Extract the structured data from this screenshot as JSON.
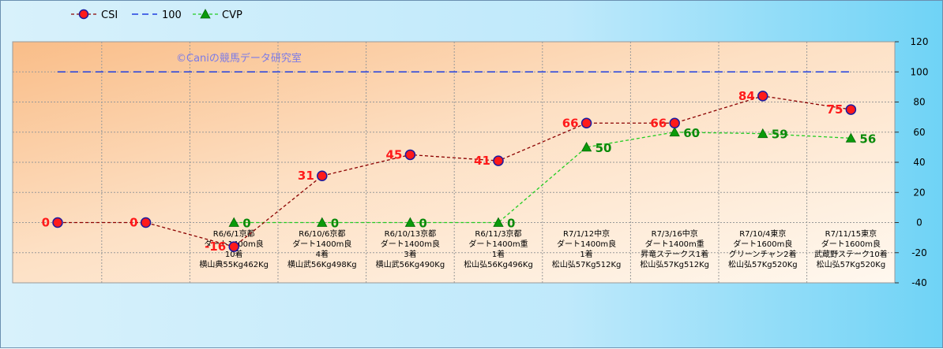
{
  "chart_data": {
    "type": "line",
    "legend": {
      "placement": "top-left",
      "entries": [
        {
          "label": "CSI",
          "color": "#8b0000",
          "marker": "circle"
        },
        {
          "label": "100",
          "color": "#1f3fe0",
          "marker": "none"
        },
        {
          "label": "CVP",
          "color": "#22cc22",
          "marker": "triangle"
        }
      ]
    },
    "watermark": "©Caniの競馬データ研究室",
    "y_axis": {
      "min": -40,
      "max": 120,
      "step": 20,
      "ticks": [
        "-40",
        "-20",
        "0",
        "20",
        "40",
        "60",
        "80",
        "100",
        "120"
      ],
      "position": "right"
    },
    "grid": true,
    "races": [
      [
        "R6/6/1京都",
        "ダート1400m良",
        "10着",
        "横山典55Kg462Kg"
      ],
      [
        "R6/10/6京都",
        "ダート1400m良",
        "4着",
        "横山武56Kg498Kg"
      ],
      [
        "R6/10/13京都",
        "ダート1400m良",
        "3着",
        "横山武56Kg490Kg"
      ],
      [
        "R6/11/3京都",
        "ダート1400m重",
        "1着",
        "松山弘56Kg496Kg"
      ],
      [
        "R7/1/12中京",
        "ダート1400m良",
        "1着",
        "松山弘57Kg512Kg"
      ],
      [
        "R7/3/16中京",
        "ダート1400m重",
        "昇竜ステークス1着",
        "松山弘57Kg512Kg"
      ],
      [
        "R7/10/4東京",
        "ダート1600m良",
        "グリーンチャン2着",
        "松山弘57Kg520Kg"
      ],
      [
        "R7/11/15東京",
        "ダート1600m良",
        "武蔵野ステーク10着",
        "松山弘57Kg520Kg"
      ]
    ],
    "series": [
      {
        "name": "CSI",
        "values": [
          0,
          0,
          -16,
          31,
          45,
          41,
          66,
          66,
          84,
          75
        ],
        "labels": [
          "0",
          "0",
          "-16",
          "31",
          "45",
          "41",
          "66",
          "66",
          "84",
          "75"
        ],
        "color": "#8b0000",
        "marker_fill": "#ff1a1a",
        "marker_edge": "#1a1aa0"
      },
      {
        "name": "100",
        "values": [
          100,
          100,
          100,
          100,
          100,
          100,
          100,
          100,
          100,
          100
        ],
        "color": "#1f3fe0"
      },
      {
        "name": "CVP",
        "values": [
          null,
          null,
          0,
          0,
          0,
          0,
          50,
          60,
          59,
          56
        ],
        "labels": [
          "",
          "",
          "0",
          "0",
          "0",
          "0",
          "50",
          "60",
          "59",
          "56"
        ],
        "color": "#22cc22"
      }
    ]
  }
}
